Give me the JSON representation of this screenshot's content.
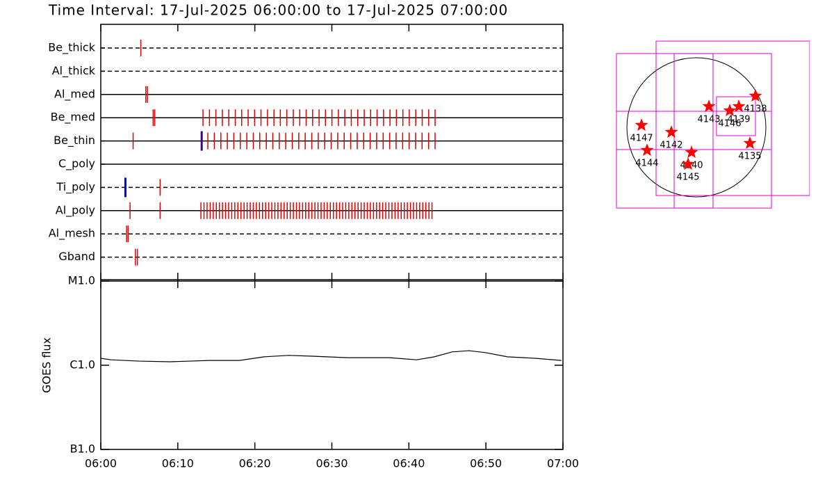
{
  "chart_data": [
    {
      "type": "timeline",
      "title": "Time Interval: 17-Jul-2025 06:00:00 to 17-Jul-2025 07:00:00",
      "xlim": [
        0,
        60
      ],
      "color": "#e00000",
      "rows": [
        {
          "label": "Be_thick",
          "style": "dashed",
          "times": [
            5.2
          ]
        },
        {
          "label": "Al_thick",
          "style": "dashed",
          "times": []
        },
        {
          "label": "Al_med",
          "style": "solid",
          "times": [
            5.85,
            6.05
          ]
        },
        {
          "label": "Be_med",
          "style": "solid",
          "times": [
            6.8,
            7.0,
            13.27,
            14.11,
            14.94,
            15.78,
            16.62,
            17.46,
            18.29,
            19.13,
            19.97,
            20.8,
            21.64,
            22.48,
            23.31,
            24.15,
            24.99,
            25.83,
            26.66,
            27.5,
            28.34,
            29.17,
            30.01,
            30.85,
            31.68,
            32.52,
            33.36,
            34.2,
            35.03,
            35.87,
            36.71,
            37.54,
            38.38,
            39.22,
            40.05,
            40.89,
            41.73,
            42.57,
            43.4
          ]
        },
        {
          "label": "Be_thin",
          "style": "solid",
          "times": [
            4.2,
            13.9,
            14.74,
            15.59,
            16.43,
            17.27,
            18.11,
            18.96,
            19.8,
            20.64,
            21.49,
            22.33,
            23.17,
            24.01,
            24.86,
            25.7,
            26.54,
            27.39,
            28.23,
            29.07,
            29.91,
            30.76,
            31.6,
            32.44,
            33.29,
            34.13,
            34.97,
            35.81,
            36.66,
            37.5,
            38.34,
            39.19,
            40.03,
            40.87,
            41.71,
            42.56,
            43.4
          ],
          "alt_times": [
            13.1
          ],
          "alt_color": "#400090"
        },
        {
          "label": "C_poly",
          "style": "solid",
          "times": []
        },
        {
          "label": "Ti_poly",
          "style": "dashed",
          "times": [
            7.7
          ],
          "alt_times": [
            3.2
          ],
          "alt_color": "#0000e0"
        },
        {
          "label": "Al_poly",
          "style": "solid",
          "times": [
            3.8,
            7.7,
            13.0,
            13.4,
            13.8,
            14.2,
            14.6,
            15.0,
            15.4,
            15.8,
            16.2,
            16.6,
            17.0,
            17.4,
            17.8,
            18.2,
            18.6,
            19.0,
            19.4,
            19.8,
            20.2,
            20.6,
            21.0,
            21.4,
            21.8,
            22.2,
            22.6,
            23.0,
            23.4,
            23.8,
            24.2,
            24.6,
            25.0,
            25.4,
            25.8,
            26.2,
            26.6,
            27.0,
            27.4,
            27.8,
            28.2,
            28.6,
            29.0,
            29.4,
            29.8,
            30.2,
            30.6,
            31.0,
            31.4,
            31.8,
            32.2,
            32.6,
            33.0,
            33.4,
            33.8,
            34.2,
            34.6,
            35.0,
            35.4,
            35.8,
            36.2,
            36.6,
            37.0,
            37.4,
            37.8,
            38.2,
            38.6,
            39.0,
            39.4,
            39.8,
            40.2,
            40.6,
            41.0,
            41.4,
            41.8,
            42.2,
            42.6,
            43.0
          ]
        },
        {
          "label": "Al_mesh",
          "style": "dashed",
          "times": [
            3.35,
            3.55
          ]
        },
        {
          "label": "Gband",
          "style": "dashed",
          "times": [
            4.5,
            4.75
          ]
        }
      ]
    },
    {
      "type": "line",
      "ylabel": "GOES flux",
      "log_scale": true,
      "ylim": [
        1e-07,
        1e-05
      ],
      "yticks": [
        {
          "value": 1e-05,
          "label": "M1.0"
        },
        {
          "value": 1e-06,
          "label": "C1.0"
        },
        {
          "value": 1e-07,
          "label": "B1.0"
        }
      ],
      "xlim": [
        0,
        60
      ],
      "xticks": [
        {
          "value": 0,
          "label": "06:00"
        },
        {
          "value": 10,
          "label": "06:10"
        },
        {
          "value": 20,
          "label": "06:20"
        },
        {
          "value": 30,
          "label": "06:30"
        },
        {
          "value": 40,
          "label": "06:40"
        },
        {
          "value": 50,
          "label": "06:50"
        },
        {
          "value": 60,
          "label": "07:00"
        }
      ],
      "x": [
        0,
        1.35,
        5,
        9,
        14,
        18,
        21.2,
        24.4,
        27.5,
        32,
        37.5,
        41,
        43.3,
        45.6,
        47.8,
        50,
        52.8,
        56.4,
        59.8
      ],
      "values": [
        1.21e-06,
        1.16e-06,
        1.12e-06,
        1.1e-06,
        1.14e-06,
        1.14e-06,
        1.26e-06,
        1.31e-06,
        1.28e-06,
        1.23e-06,
        1.23e-06,
        1.16e-06,
        1.26e-06,
        1.44e-06,
        1.49e-06,
        1.41e-06,
        1.26e-06,
        1.21e-06,
        1.14e-06
      ],
      "color": "#000000"
    },
    {
      "type": "map",
      "solar_radius": 960,
      "marker_color": "#ff0000",
      "box_color": "#e000e0",
      "regions": [
        {
          "label": "4147",
          "x": -758,
          "y": 29
        },
        {
          "label": "4144",
          "x": -682,
          "y": -317
        },
        {
          "label": "4142",
          "x": -346,
          "y": -67
        },
        {
          "label": "4140",
          "x": -67,
          "y": -346
        },
        {
          "label": "4145",
          "x": -115,
          "y": -509
        },
        {
          "label": "4143",
          "x": 173,
          "y": 288
        },
        {
          "label": "4146",
          "x": 461,
          "y": 230
        },
        {
          "label": "4139",
          "x": 586,
          "y": 288
        },
        {
          "label": "4138",
          "x": 816,
          "y": 432
        },
        {
          "label": "4135",
          "x": 739,
          "y": -221
        }
      ],
      "boxes": [
        [
          -1104,
          1018,
          1037,
          -1114
        ],
        [
          -557,
          1190,
          1565,
          -941
        ],
        [
          -1104,
          221,
          1037,
          -307
        ],
        [
          -307,
          1018,
          230,
          -1114
        ],
        [
          278,
          422,
          816,
          -115
        ]
      ]
    }
  ]
}
